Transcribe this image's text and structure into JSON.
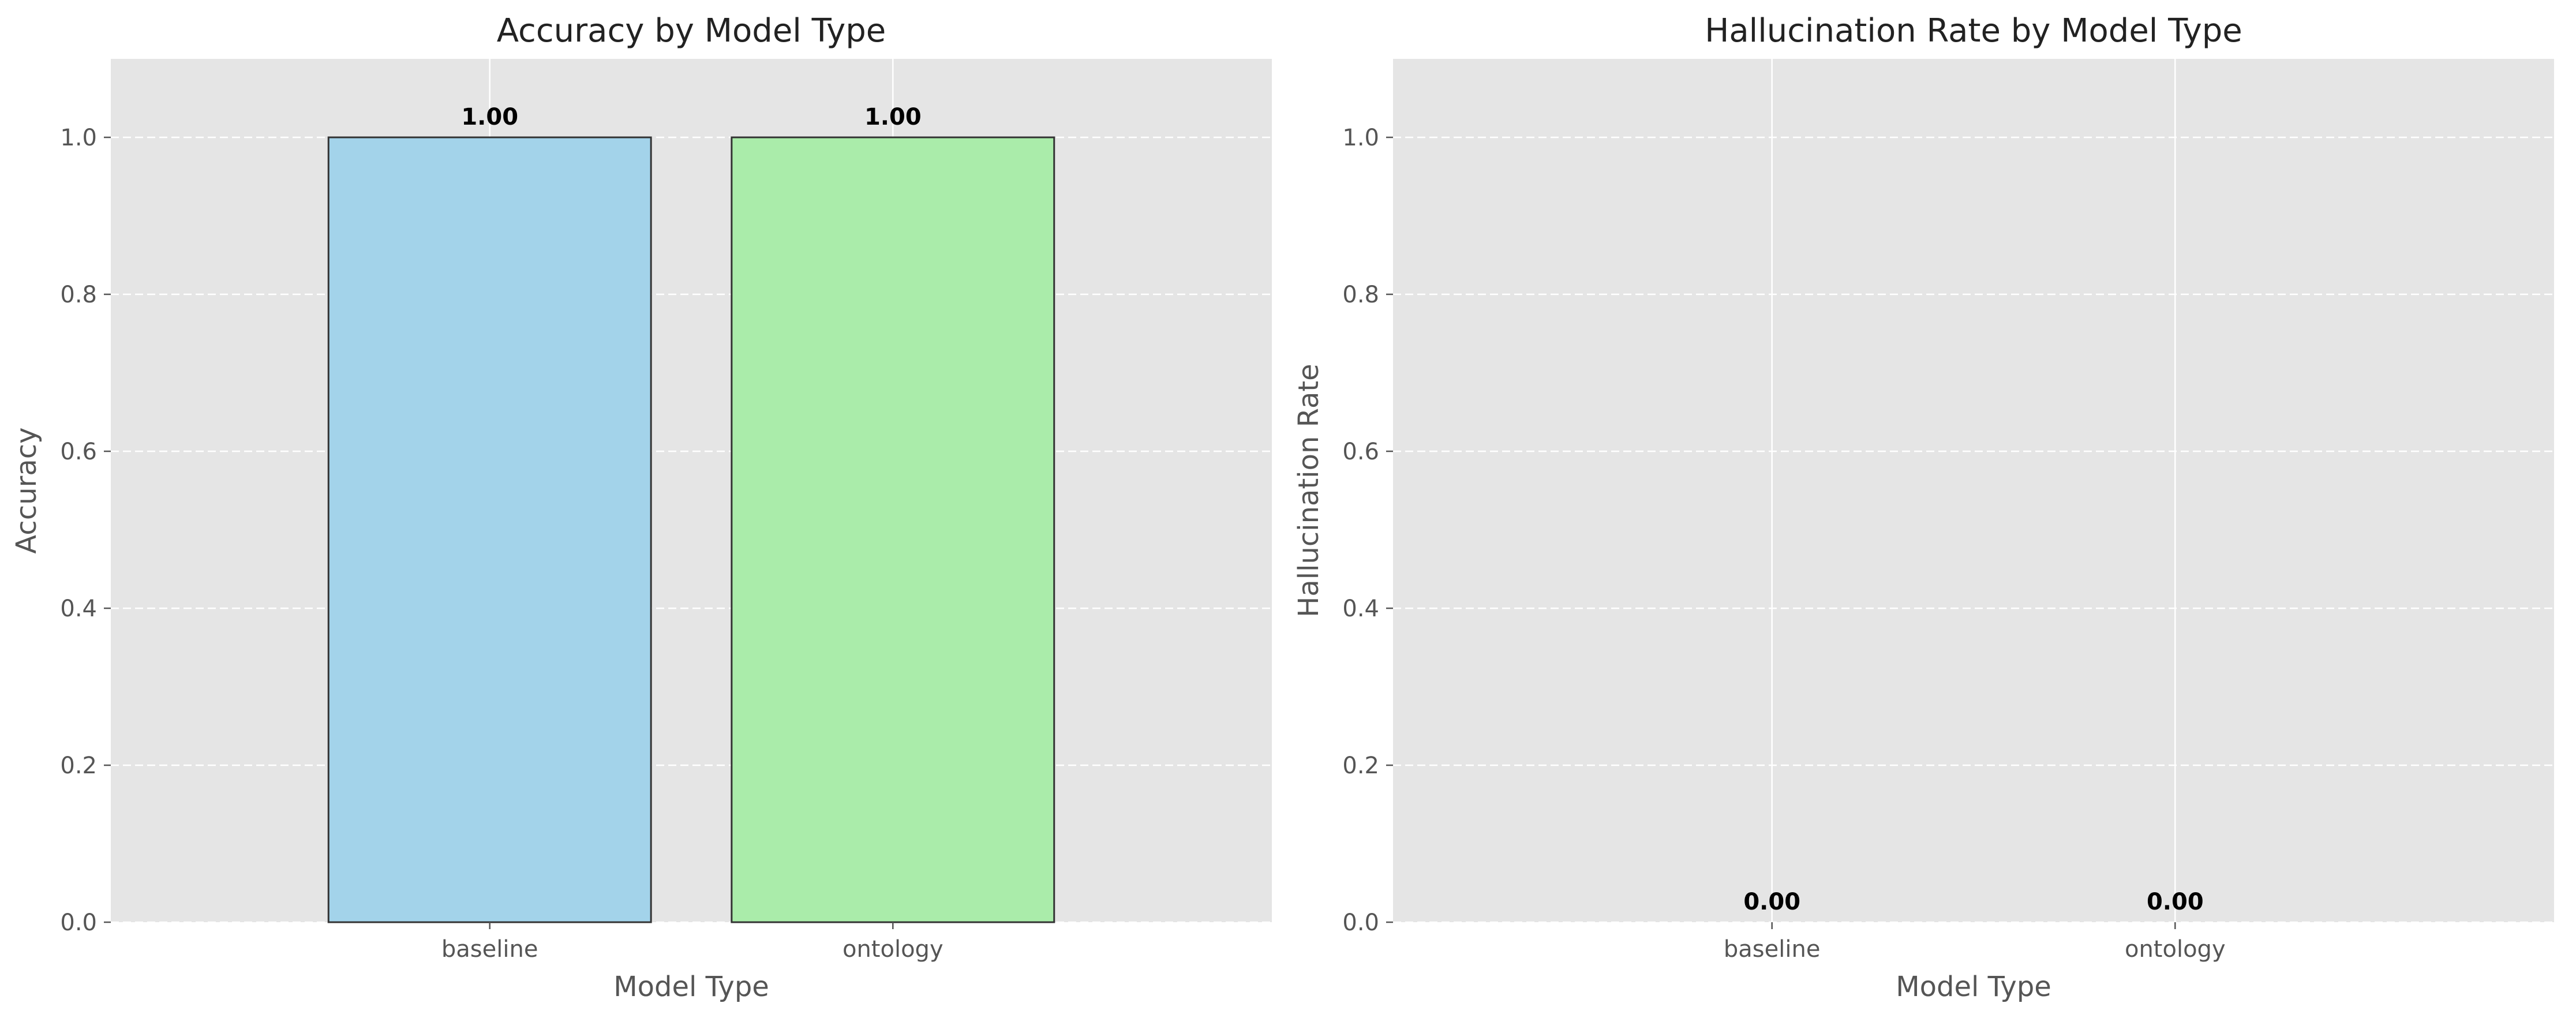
{
  "chart_data": [
    {
      "type": "bar",
      "title": "Accuracy by Model Type",
      "xlabel": "Model Type",
      "ylabel": "Accuracy",
      "categories": [
        "baseline",
        "ontology"
      ],
      "values": [
        1.0,
        1.0
      ],
      "value_labels": [
        "1.00",
        "1.00"
      ],
      "colors": [
        "#a3d3ea",
        "#aaecaa"
      ],
      "edge_color": "#333333",
      "ylim": [
        0,
        1.1
      ],
      "yticks": [
        0.0,
        0.2,
        0.4,
        0.6,
        0.8,
        1.0
      ],
      "ytick_labels": [
        "0.0",
        "0.2",
        "0.4",
        "0.6",
        "0.8",
        "1.0"
      ],
      "grid": true,
      "background": "#e5e5e5"
    },
    {
      "type": "bar",
      "title": "Hallucination Rate by Model Type",
      "xlabel": "Model Type",
      "ylabel": "Hallucination Rate",
      "categories": [
        "baseline",
        "ontology"
      ],
      "values": [
        0.0,
        0.0
      ],
      "value_labels": [
        "0.00",
        "0.00"
      ],
      "colors": [
        "#f4a6a6",
        "#f4a6a6"
      ],
      "edge_color": "#333333",
      "ylim": [
        0,
        1.1
      ],
      "yticks": [
        0.0,
        0.2,
        0.4,
        0.6,
        0.8,
        1.0
      ],
      "ytick_labels": [
        "0.0",
        "0.2",
        "0.4",
        "0.6",
        "0.8",
        "1.0"
      ],
      "grid": true,
      "background": "#e5e5e5"
    }
  ]
}
